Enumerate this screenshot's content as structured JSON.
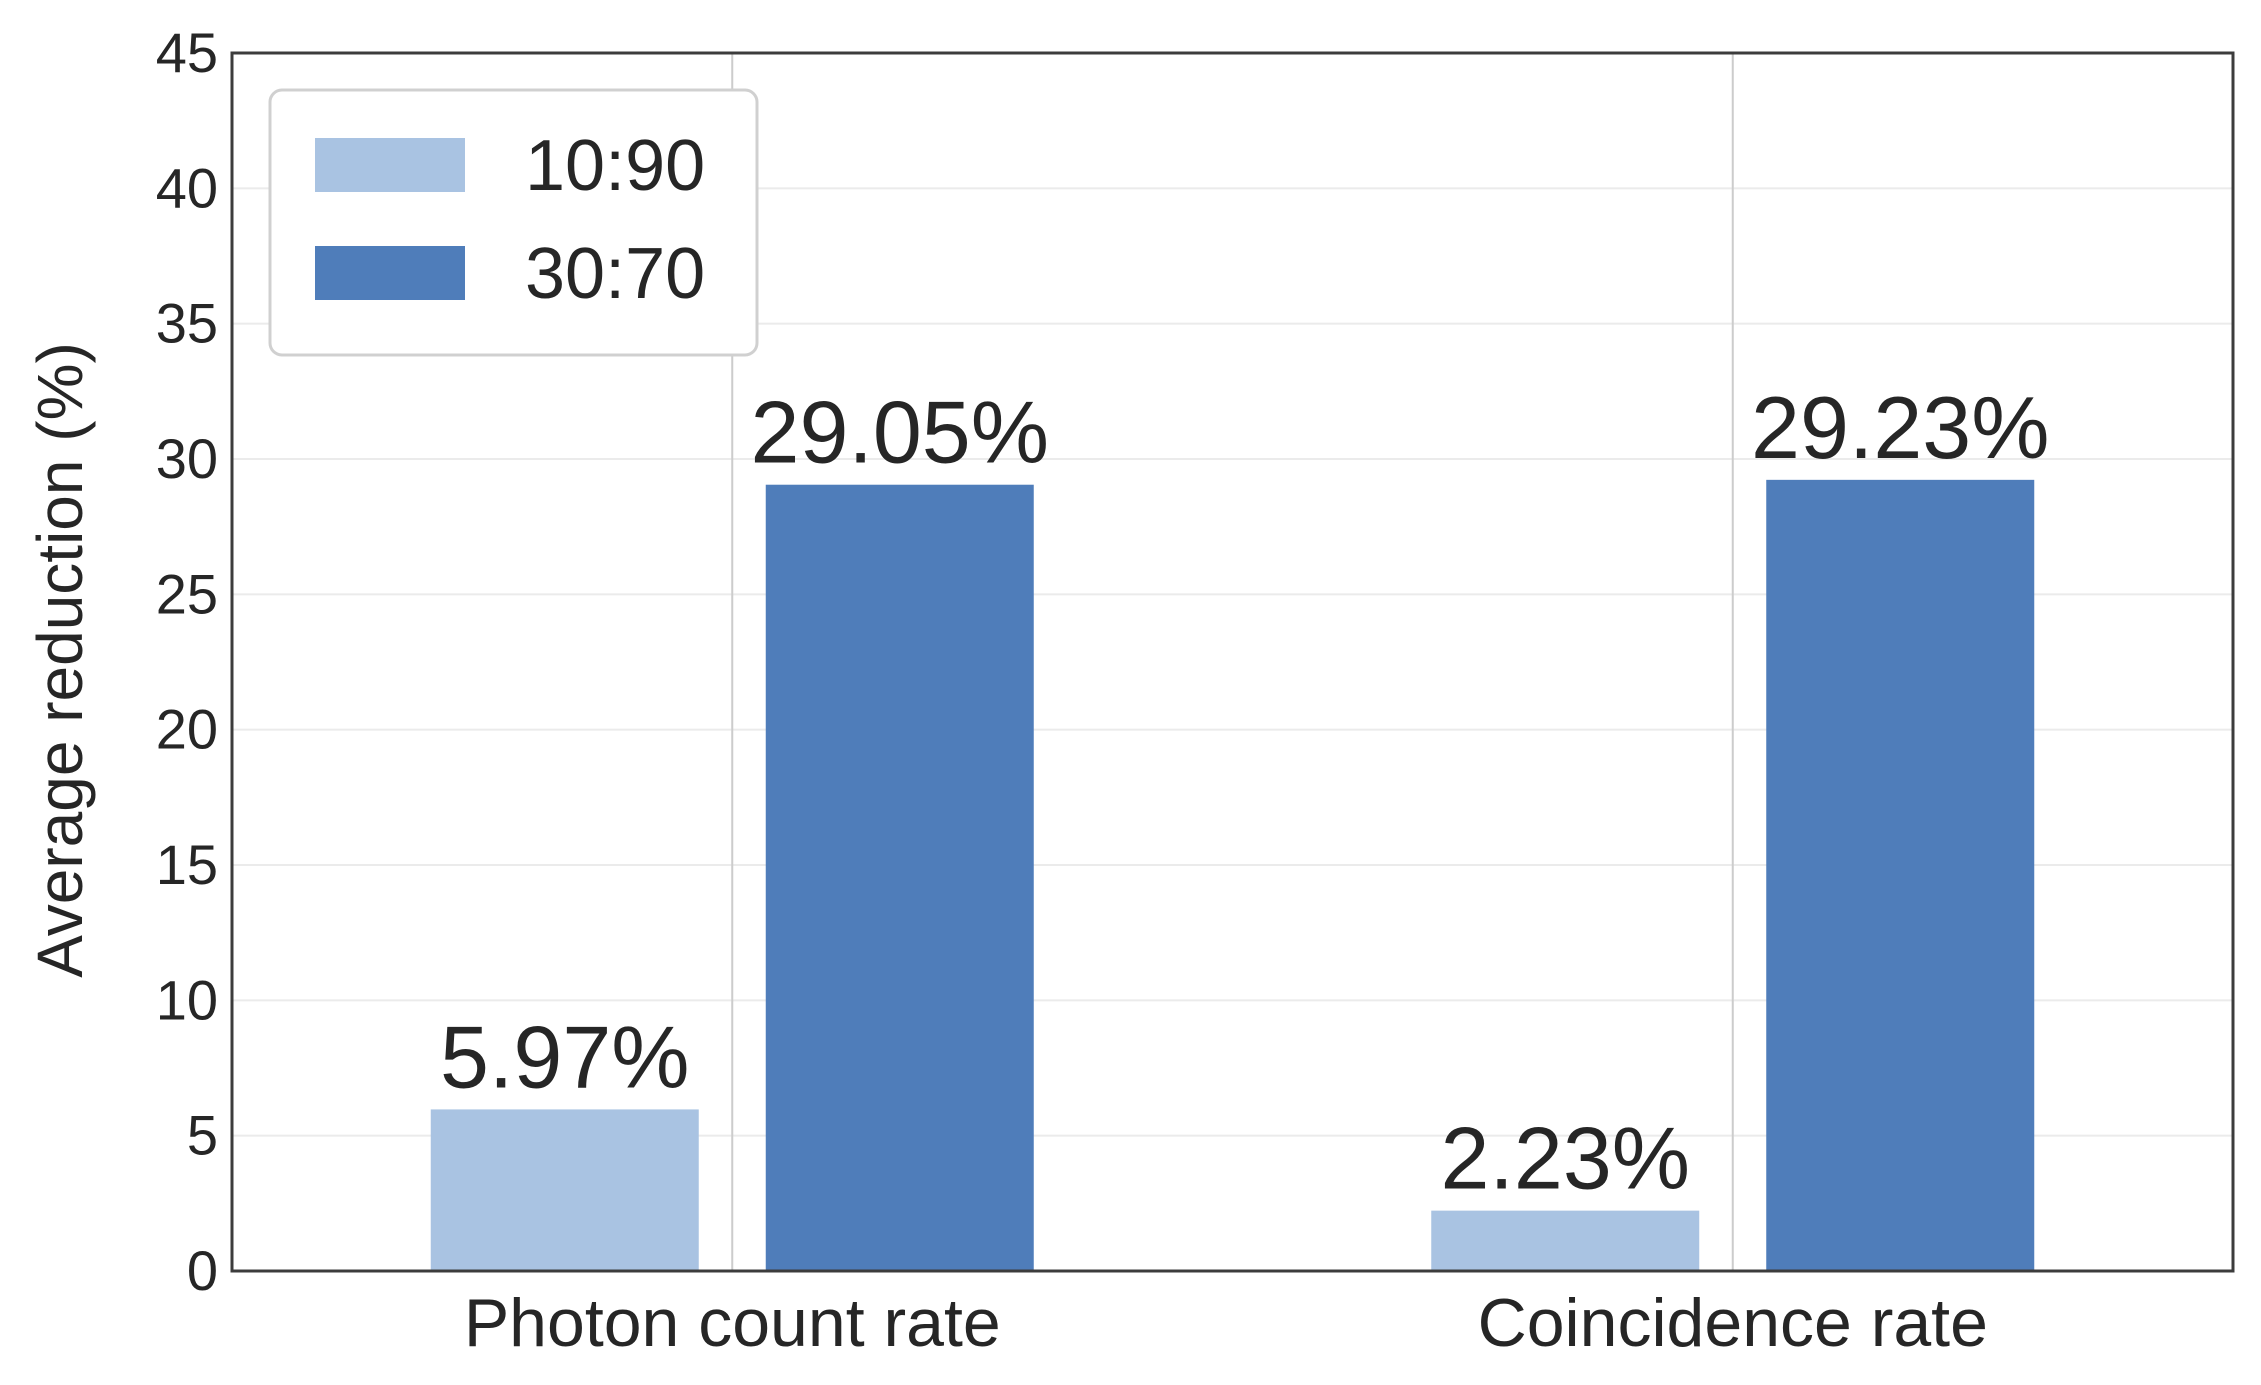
{
  "chart_data": {
    "type": "bar",
    "title": "",
    "xlabel": "",
    "ylabel": "Average reduction (%)",
    "categories": [
      "Photon count rate",
      "Coincidence rate"
    ],
    "series": [
      {
        "name": "10:90",
        "values": [
          5.97,
          2.23
        ],
        "labels": [
          "5.97%",
          "2.23%"
        ],
        "color": "#a9c3e2"
      },
      {
        "name": "30:70",
        "values": [
          29.05,
          29.23
        ],
        "labels": [
          "29.05%",
          "29.23%"
        ],
        "color": "#4f7dba"
      }
    ],
    "ylim": [
      0,
      45
    ],
    "yticks": [
      0,
      5,
      10,
      15,
      20,
      25,
      30,
      35,
      40,
      45
    ],
    "grid": true,
    "legend_position": "top-left",
    "colors": {
      "axis": "#3c3c3c",
      "grid": "#ebebeb",
      "vgrid": "#cccccc",
      "text": "#262626",
      "legend_border": "#d0d0d0"
    }
  }
}
